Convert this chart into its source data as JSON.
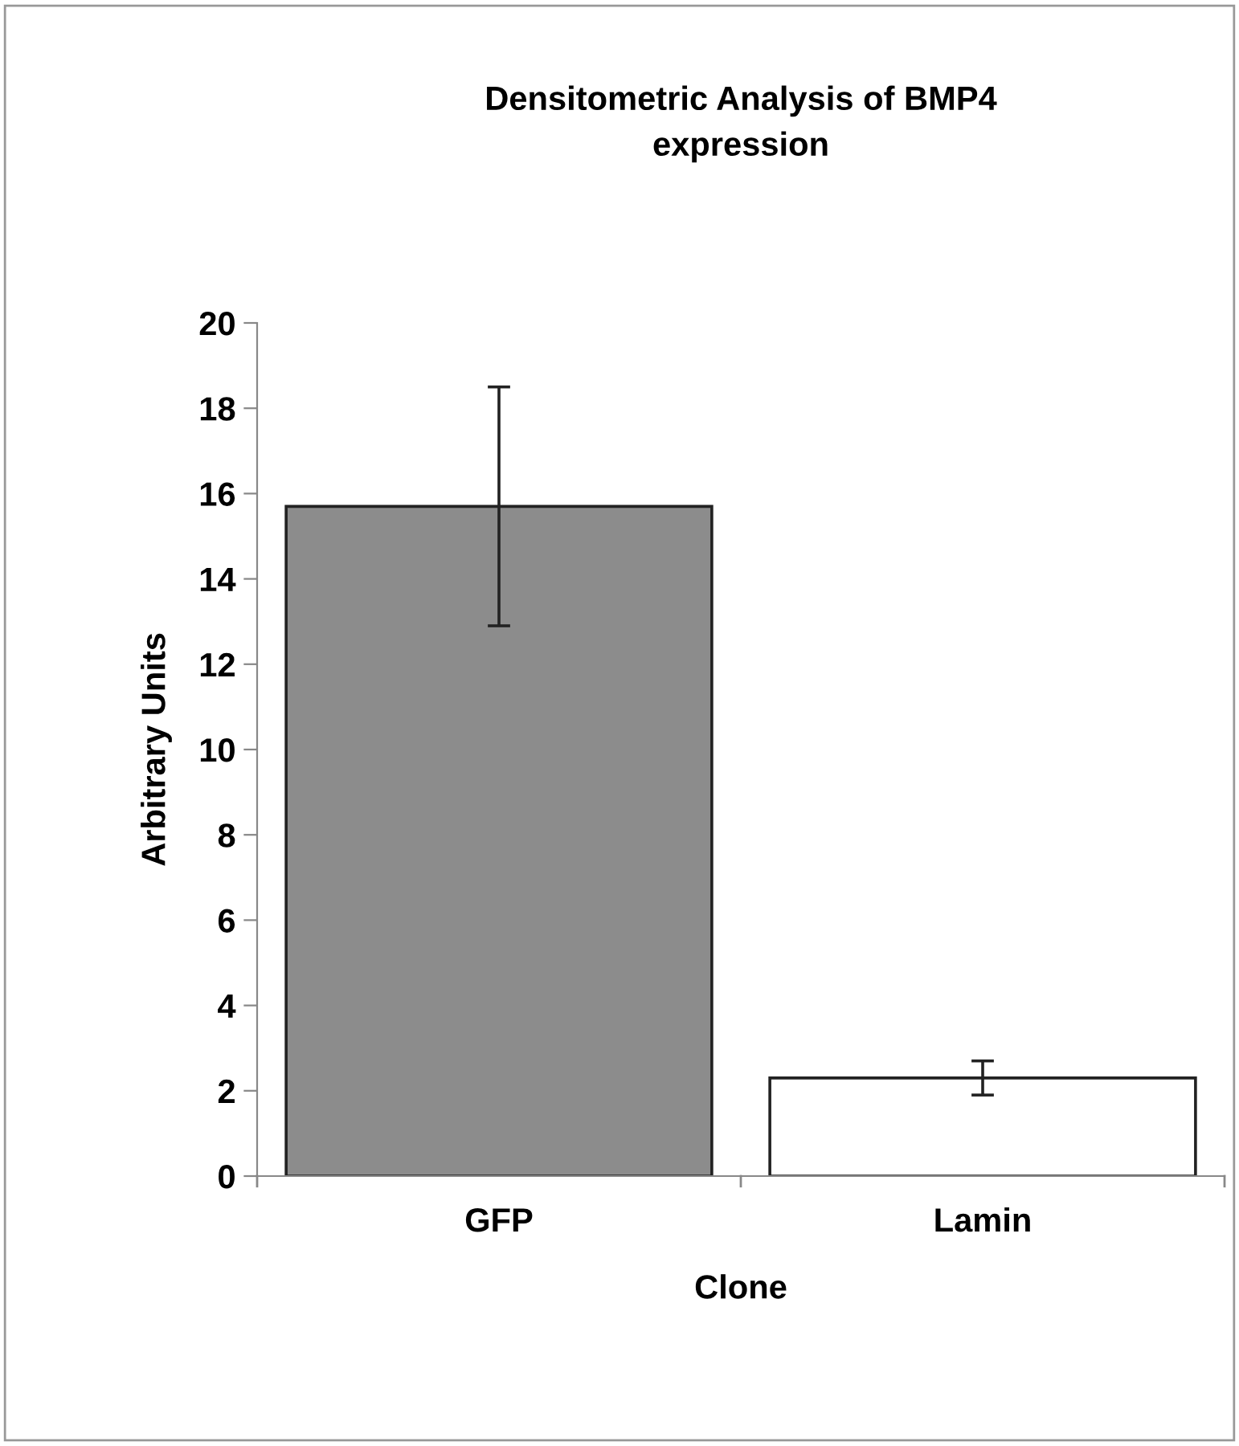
{
  "chart_data": {
    "type": "bar",
    "title": "Densitometric Analysis of BMP4\nexpression",
    "xlabel": "Clone",
    "ylabel": "Arbitrary Units",
    "categories": [
      "GFP",
      "Lamin"
    ],
    "values": [
      15.7,
      2.3
    ],
    "errors": [
      2.8,
      0.4
    ],
    "colors": [
      "#8c8c8c",
      "#ffffff"
    ],
    "ylim": [
      0,
      20
    ],
    "yticks": [
      0,
      2,
      4,
      6,
      8,
      10,
      12,
      14,
      16,
      18,
      20
    ],
    "grid": false,
    "legend": false
  }
}
